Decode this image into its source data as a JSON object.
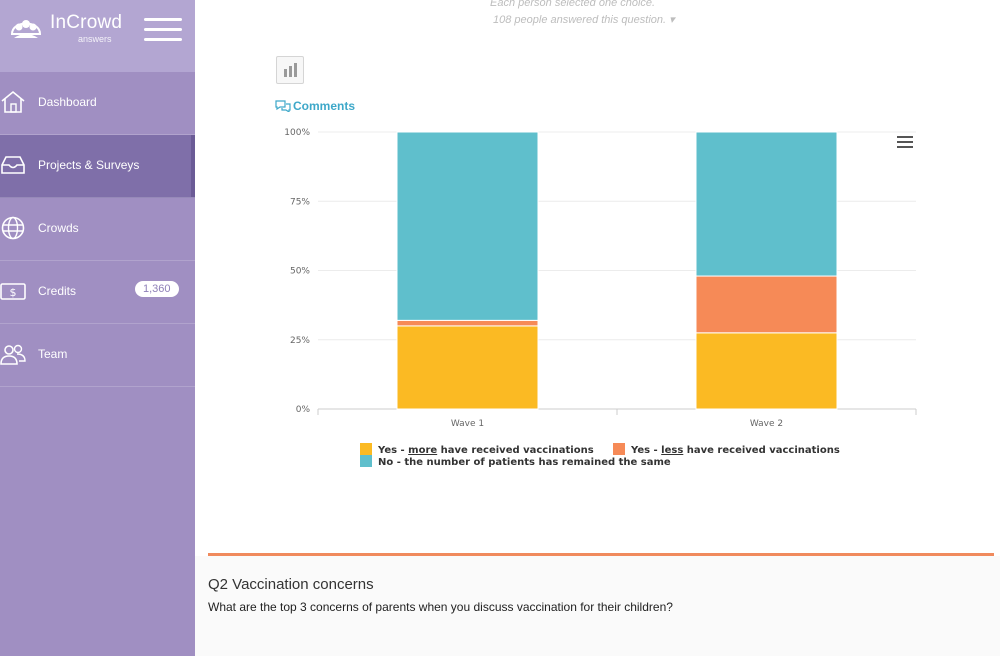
{
  "app": {
    "brand": "InCrowd",
    "brand_sub": "answers"
  },
  "sidebar": {
    "items": [
      {
        "label": "Dashboard",
        "icon": "home-icon"
      },
      {
        "label": "Projects & Surveys",
        "icon": "inbox-icon",
        "active": true
      },
      {
        "label": "Crowds",
        "icon": "globe-icon"
      },
      {
        "label": "Credits",
        "icon": "dollar-card-icon",
        "badge": "1,360"
      },
      {
        "label": "Team",
        "icon": "team-icon"
      }
    ]
  },
  "question_meta": {
    "line1": "Each person selected one choice.",
    "line2": "108 people answered this question."
  },
  "comments_label": "Comments",
  "colors": {
    "sidebar": "#a08fc2",
    "sidebar_active": "#7f6fa9",
    "yes_more": "#fbba23",
    "yes_less": "#f68a57",
    "no_same": "#5fbfcc",
    "accent_link": "#3ea8c9",
    "divider": "#f08a5d"
  },
  "chart_data": {
    "type": "bar",
    "stacked": true,
    "categories": [
      "Wave 1",
      "Wave 2"
    ],
    "y_ticks": [
      "0%",
      "25%",
      "50%",
      "75%",
      "100%"
    ],
    "ylim": [
      0,
      100
    ],
    "grid": true,
    "legend_position": "bottom",
    "series": [
      {
        "name_parts": [
          "Yes - ",
          "more",
          " have received vaccinations"
        ],
        "underline_index": 1,
        "color": "#fbba23",
        "values": [
          30,
          27.5
        ]
      },
      {
        "name_parts": [
          "Yes - ",
          "less",
          " have received vaccinations"
        ],
        "underline_index": 1,
        "color": "#f68a57",
        "values": [
          2,
          20.5
        ]
      },
      {
        "name_parts": [
          "No - the number of patients has remained the same"
        ],
        "underline_index": -1,
        "color": "#5fbfcc",
        "values": [
          68,
          52
        ]
      }
    ]
  },
  "question2": {
    "title": "Q2 Vaccination concerns",
    "text": "What are the top 3 concerns of parents when you discuss vaccination for their children?"
  }
}
